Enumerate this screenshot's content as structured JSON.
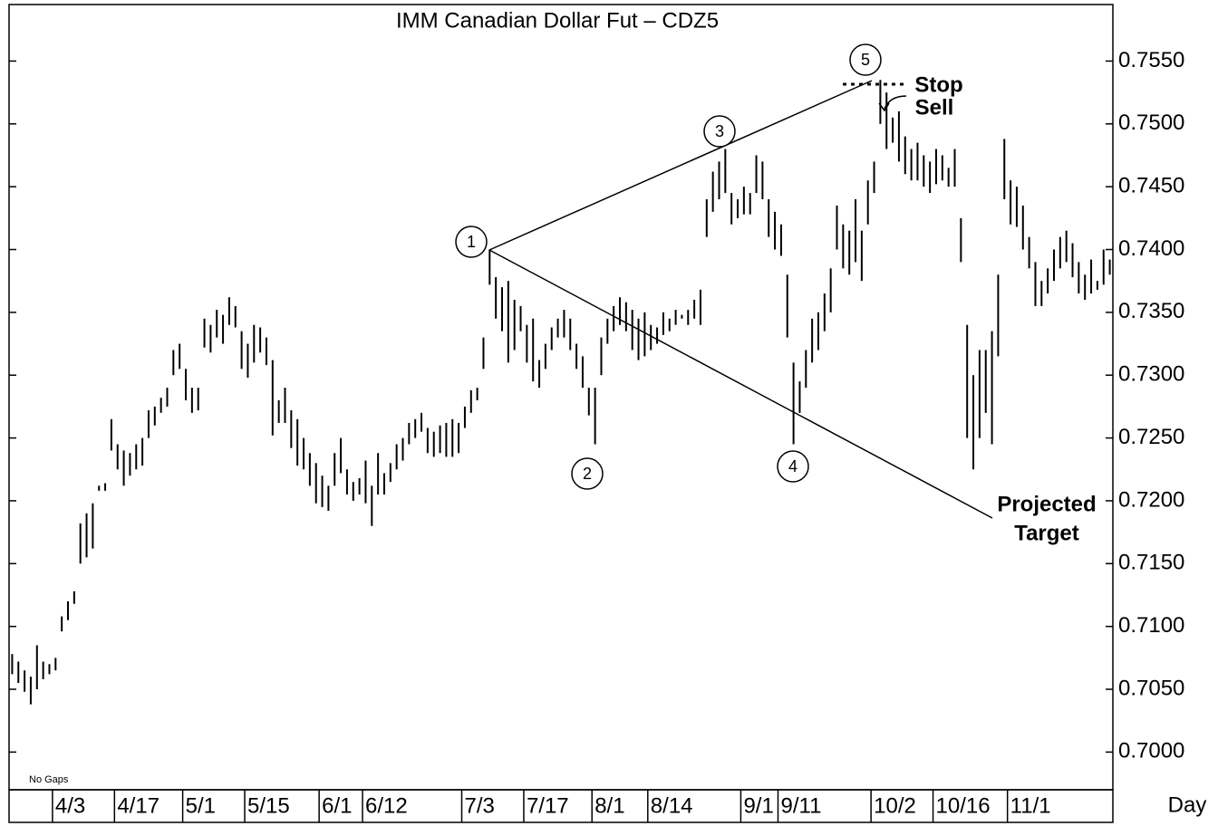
{
  "chart_data": {
    "type": "range-bar",
    "title": "IMM Canadian Dollar Fut – CDZ5",
    "x_label": "Day",
    "footnote": "No Gaps",
    "annotations": {
      "points": [
        "1",
        "2",
        "3",
        "4",
        "5"
      ],
      "stop": "Stop",
      "sell": "Sell",
      "projected": "Projected",
      "target": "Target"
    },
    "color": "#000000",
    "ylim": [
      0.697,
      0.7595
    ],
    "yticks": [
      {
        "value": 0.7,
        "label": "0.7000"
      },
      {
        "value": 0.705,
        "label": "0.7050"
      },
      {
        "value": 0.71,
        "label": "0.7100"
      },
      {
        "value": 0.715,
        "label": "0.7150"
      },
      {
        "value": 0.72,
        "label": "0.7200"
      },
      {
        "value": 0.725,
        "label": "0.7250"
      },
      {
        "value": 0.73,
        "label": "0.7300"
      },
      {
        "value": 0.735,
        "label": "0.7350"
      },
      {
        "value": 0.74,
        "label": "0.7400"
      },
      {
        "value": 0.745,
        "label": "0.7450"
      },
      {
        "value": 0.75,
        "label": "0.7500"
      },
      {
        "value": 0.755,
        "label": "0.7550"
      }
    ],
    "categories": [
      null,
      null,
      null,
      null,
      null,
      null,
      null,
      "4/3",
      null,
      null,
      null,
      null,
      null,
      null,
      null,
      null,
      null,
      "4/17",
      null,
      null,
      null,
      null,
      null,
      null,
      null,
      null,
      null,
      null,
      "5/1",
      null,
      null,
      null,
      null,
      null,
      null,
      null,
      null,
      null,
      "5/15",
      null,
      null,
      null,
      null,
      null,
      null,
      null,
      null,
      null,
      null,
      null,
      "6/1",
      null,
      null,
      null,
      null,
      null,
      null,
      "6/12",
      null,
      null,
      null,
      null,
      null,
      null,
      null,
      null,
      null,
      null,
      null,
      null,
      null,
      null,
      null,
      "7/3",
      null,
      null,
      null,
      null,
      null,
      null,
      null,
      null,
      null,
      "7/17",
      null,
      null,
      null,
      null,
      null,
      null,
      null,
      null,
      null,
      null,
      "8/1",
      null,
      null,
      null,
      null,
      null,
      null,
      null,
      null,
      "8/14",
      null,
      null,
      null,
      null,
      null,
      null,
      null,
      null,
      null,
      null,
      null,
      null,
      null,
      null,
      "9/1",
      null,
      null,
      null,
      null,
      null,
      "9/11",
      null,
      null,
      null,
      null,
      null,
      null,
      null,
      null,
      null,
      null,
      null,
      null,
      null,
      null,
      "10/2",
      null,
      null,
      null,
      null,
      null,
      null,
      null,
      null,
      null,
      "10/16",
      null,
      null,
      null,
      null,
      null,
      null,
      null,
      null,
      null,
      null,
      null,
      "11/1",
      null,
      null,
      null,
      null,
      null,
      null,
      null,
      null,
      null,
      null,
      null,
      null,
      null,
      null,
      null,
      null
    ],
    "high": [
      0.7078,
      0.7072,
      0.7065,
      0.706,
      0.7085,
      0.7072,
      0.707,
      0.7075,
      0.7108,
      0.712,
      0.7128,
      0.7182,
      0.719,
      0.7198,
      0.7212,
      0.7214,
      0.7265,
      0.7245,
      0.724,
      0.7238,
      0.7245,
      0.725,
      0.7272,
      0.7275,
      0.7282,
      0.729,
      0.732,
      0.7325,
      0.7305,
      0.729,
      0.729,
      0.7345,
      0.734,
      0.7352,
      0.7348,
      0.7362,
      0.7355,
      0.7335,
      0.7325,
      0.734,
      0.7338,
      0.733,
      0.7312,
      0.728,
      0.729,
      0.7272,
      0.7265,
      0.725,
      0.7238,
      0.723,
      0.722,
      0.7212,
      0.7238,
      0.725,
      0.7225,
      0.7215,
      0.7218,
      0.7232,
      0.7212,
      0.7238,
      0.7222,
      0.723,
      0.7245,
      0.725,
      0.7262,
      0.7265,
      0.727,
      0.7258,
      0.7255,
      0.726,
      0.7262,
      0.7265,
      0.7262,
      0.7275,
      0.7288,
      0.729,
      0.733,
      0.74,
      0.7378,
      0.737,
      0.7375,
      0.736,
      0.7355,
      0.734,
      0.7345,
      0.7312,
      0.7325,
      0.7338,
      0.7345,
      0.7352,
      0.7345,
      0.7325,
      0.7315,
      0.729,
      0.729,
      0.733,
      0.7345,
      0.7355,
      0.7362,
      0.7358,
      0.7352,
      0.7345,
      0.735,
      0.734,
      0.7338,
      0.735,
      0.7345,
      0.7352,
      0.7348,
      0.7352,
      0.736,
      0.7368,
      0.744,
      0.7462,
      0.747,
      0.748,
      0.7445,
      0.744,
      0.745,
      0.7445,
      0.7475,
      0.747,
      0.744,
      0.743,
      0.742,
      0.738,
      0.731,
      0.7295,
      0.732,
      0.7345,
      0.735,
      0.7365,
      0.7385,
      0.7435,
      0.742,
      0.7415,
      0.744,
      0.7415,
      0.7455,
      0.747,
      0.7535,
      0.7525,
      0.7505,
      0.751,
      0.749,
      0.748,
      0.7485,
      0.7475,
      0.747,
      0.748,
      0.7475,
      0.7465,
      0.748,
      0.7425,
      0.734,
      0.73,
      0.732,
      0.732,
      0.7335,
      0.738,
      0.7488,
      0.7455,
      0.745,
      0.7435,
      0.741,
      0.739,
      0.7375,
      0.7385,
      0.74,
      0.741,
      0.7415,
      0.7405,
      0.739,
      0.738,
      0.7392,
      0.7375,
      0.74,
      0.7392
    ],
    "low": [
      0.7062,
      0.7055,
      0.7048,
      0.7038,
      0.705,
      0.7058,
      0.7062,
      0.7065,
      0.7096,
      0.7105,
      0.7118,
      0.715,
      0.7155,
      0.7162,
      0.7208,
      0.7208,
      0.724,
      0.7225,
      0.7212,
      0.722,
      0.7225,
      0.7228,
      0.725,
      0.726,
      0.727,
      0.7275,
      0.73,
      0.7305,
      0.728,
      0.727,
      0.7272,
      0.7322,
      0.7318,
      0.733,
      0.7325,
      0.734,
      0.7338,
      0.7305,
      0.7298,
      0.731,
      0.7318,
      0.7308,
      0.7252,
      0.7262,
      0.7262,
      0.7242,
      0.7228,
      0.7225,
      0.7212,
      0.7198,
      0.7195,
      0.7192,
      0.7212,
      0.7222,
      0.7205,
      0.72,
      0.7205,
      0.7198,
      0.718,
      0.7205,
      0.7205,
      0.7215,
      0.7225,
      0.7232,
      0.7245,
      0.725,
      0.7255,
      0.7238,
      0.7235,
      0.7238,
      0.7235,
      0.7235,
      0.7238,
      0.7258,
      0.727,
      0.728,
      0.7305,
      0.7372,
      0.7345,
      0.7335,
      0.731,
      0.732,
      0.7335,
      0.731,
      0.7295,
      0.729,
      0.7305,
      0.732,
      0.733,
      0.733,
      0.732,
      0.7305,
      0.729,
      0.7268,
      0.7245,
      0.73,
      0.7325,
      0.7335,
      0.734,
      0.7335,
      0.732,
      0.7312,
      0.7315,
      0.732,
      0.7325,
      0.7332,
      0.7335,
      0.734,
      0.7345,
      0.734,
      0.7345,
      0.734,
      0.741,
      0.743,
      0.744,
      0.7445,
      0.742,
      0.7425,
      0.7428,
      0.7428,
      0.7445,
      0.744,
      0.741,
      0.74,
      0.7395,
      0.733,
      0.7245,
      0.727,
      0.729,
      0.731,
      0.732,
      0.7335,
      0.735,
      0.74,
      0.7385,
      0.738,
      0.739,
      0.7375,
      0.742,
      0.7445,
      0.75,
      0.748,
      0.7485,
      0.747,
      0.746,
      0.7455,
      0.7455,
      0.745,
      0.7445,
      0.7452,
      0.7455,
      0.745,
      0.745,
      0.739,
      0.725,
      0.7225,
      0.725,
      0.727,
      0.7245,
      0.7315,
      0.744,
      0.742,
      0.7418,
      0.74,
      0.7385,
      0.7355,
      0.7355,
      0.7365,
      0.7375,
      0.7385,
      0.739,
      0.7378,
      0.7365,
      0.736,
      0.7365,
      0.7368,
      0.7372,
      0.738
    ]
  }
}
